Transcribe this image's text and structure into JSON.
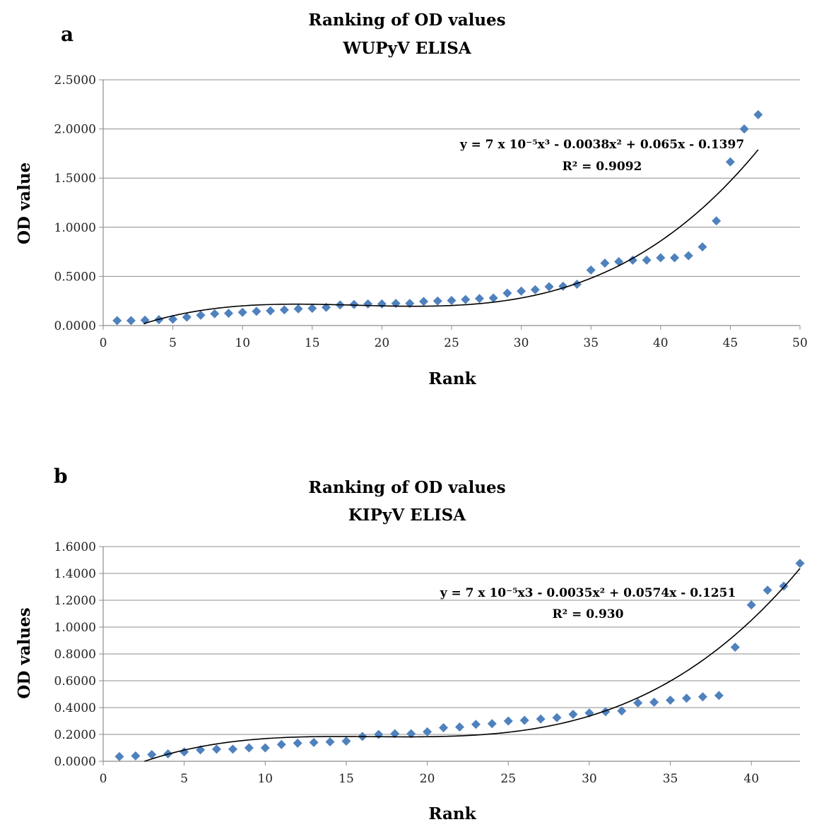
{
  "chart_data": [
    {
      "type": "scatter",
      "panel_label": "a",
      "title_line1": "Ranking of OD values",
      "title_line2": "WUPyV ELISA",
      "xlabel": "Rank",
      "ylabel": "OD value",
      "xlim": [
        0,
        50
      ],
      "ylim": [
        0,
        2.5
      ],
      "x_ticks": [
        0,
        5,
        10,
        15,
        20,
        25,
        30,
        35,
        40,
        45,
        50
      ],
      "y_ticks": [
        0,
        0.5,
        1.0,
        1.5,
        2.0,
        2.5
      ],
      "y_tick_labels": [
        "0.0000",
        "0.5000",
        "1.0000",
        "1.5000",
        "2.0000",
        "2.5000"
      ],
      "x_tick_labels": [
        "0",
        "5",
        "10",
        "15",
        "20",
        "25",
        "30",
        "35",
        "40",
        "45",
        "50"
      ],
      "grid": true,
      "marker_color": "#4F81BD",
      "trend_color": "#000000",
      "trend_coeffs": [
        7e-05,
        -0.0038,
        0.065,
        -0.1397
      ],
      "trend_xrange": [
        2.9,
        47
      ],
      "equation": "y = 7 x 10⁻⁵x³ - 0.0038x² + 0.065x - 0.1397",
      "r_squared": "R² = 0.9092",
      "x": [
        1,
        2,
        3,
        4,
        5,
        6,
        7,
        8,
        9,
        10,
        11,
        12,
        13,
        14,
        15,
        16,
        17,
        18,
        19,
        20,
        21,
        22,
        23,
        24,
        25,
        26,
        27,
        28,
        29,
        30,
        31,
        32,
        33,
        34,
        35,
        36,
        37,
        38,
        39,
        40,
        41,
        42,
        43,
        44,
        45,
        46,
        47
      ],
      "y": [
        0.05,
        0.05,
        0.055,
        0.06,
        0.065,
        0.085,
        0.105,
        0.12,
        0.125,
        0.135,
        0.145,
        0.15,
        0.16,
        0.17,
        0.175,
        0.185,
        0.21,
        0.215,
        0.22,
        0.22,
        0.225,
        0.225,
        0.245,
        0.25,
        0.255,
        0.265,
        0.275,
        0.28,
        0.33,
        0.35,
        0.365,
        0.395,
        0.4,
        0.42,
        0.565,
        0.635,
        0.65,
        0.665,
        0.665,
        0.69,
        0.69,
        0.71,
        0.8,
        1.065,
        1.665,
        2.0,
        2.145
      ]
    },
    {
      "type": "scatter",
      "panel_label": "b",
      "title_line1": "Ranking of OD values",
      "title_line2": "KIPyV ELISA",
      "xlabel": "Rank",
      "ylabel": "OD values",
      "xlim": [
        0,
        43
      ],
      "ylim": [
        0,
        1.6
      ],
      "x_ticks": [
        0,
        5,
        10,
        15,
        20,
        25,
        30,
        35,
        40
      ],
      "y_ticks": [
        0,
        0.2,
        0.4,
        0.6,
        0.8,
        1.0,
        1.2,
        1.4,
        1.6
      ],
      "y_tick_labels": [
        "0.0000",
        "0.2000",
        "0.4000",
        "0.6000",
        "0.8000",
        "1.0000",
        "1.2000",
        "1.4000",
        "1.6000"
      ],
      "x_tick_labels": [
        "0",
        "5",
        "10",
        "15",
        "20",
        "25",
        "30",
        "35",
        "40"
      ],
      "grid": true,
      "marker_color": "#4F81BD",
      "trend_color": "#000000",
      "trend_coeffs": [
        7e-05,
        -0.0035,
        0.0574,
        -0.1251
      ],
      "trend_xrange": [
        2.55,
        43
      ],
      "equation": "y = 7 x 10⁻⁵x3 - 0.0035x² + 0.0574x - 0.1251",
      "r_squared": "R² = 0.930",
      "x": [
        1,
        2,
        3,
        4,
        5,
        6,
        7,
        8,
        9,
        10,
        11,
        12,
        13,
        14,
        15,
        16,
        17,
        18,
        19,
        20,
        21,
        22,
        23,
        24,
        25,
        26,
        27,
        28,
        29,
        30,
        31,
        32,
        33,
        34,
        35,
        36,
        37,
        38,
        39,
        40,
        41,
        42,
        43
      ],
      "y": [
        0.035,
        0.04,
        0.05,
        0.055,
        0.07,
        0.085,
        0.09,
        0.09,
        0.1,
        0.1,
        0.125,
        0.135,
        0.14,
        0.145,
        0.15,
        0.185,
        0.2,
        0.205,
        0.205,
        0.22,
        0.25,
        0.255,
        0.275,
        0.28,
        0.3,
        0.305,
        0.315,
        0.325,
        0.35,
        0.36,
        0.37,
        0.375,
        0.435,
        0.44,
        0.455,
        0.47,
        0.48,
        0.49,
        0.85,
        1.165,
        1.275,
        1.305,
        1.475
      ]
    }
  ]
}
